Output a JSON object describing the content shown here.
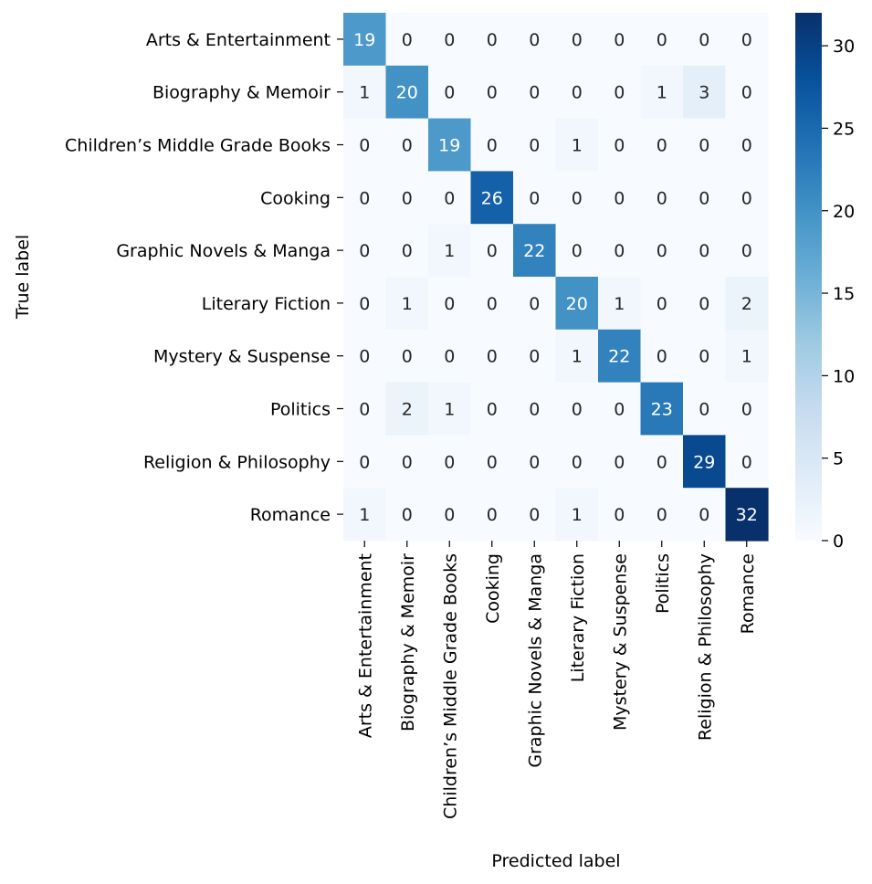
{
  "chart_data": {
    "type": "heatmap",
    "title": "",
    "xlabel": "Predicted label",
    "ylabel": "True label",
    "labels": [
      "Arts & Entertainment",
      "Biography & Memoir",
      "Children’s Middle Grade Books",
      "Cooking",
      "Graphic Novels & Manga",
      "Literary Fiction",
      "Mystery & Suspense",
      "Politics",
      "Religion & Philosophy",
      "Romance"
    ],
    "matrix": [
      [
        19,
        0,
        0,
        0,
        0,
        0,
        0,
        0,
        0,
        0
      ],
      [
        1,
        20,
        0,
        0,
        0,
        0,
        0,
        1,
        3,
        0
      ],
      [
        0,
        0,
        19,
        0,
        0,
        1,
        0,
        0,
        0,
        0
      ],
      [
        0,
        0,
        0,
        26,
        0,
        0,
        0,
        0,
        0,
        0
      ],
      [
        0,
        0,
        1,
        0,
        22,
        0,
        0,
        0,
        0,
        0
      ],
      [
        0,
        1,
        0,
        0,
        0,
        20,
        1,
        0,
        0,
        2
      ],
      [
        0,
        0,
        0,
        0,
        0,
        1,
        22,
        0,
        0,
        1
      ],
      [
        0,
        2,
        1,
        0,
        0,
        0,
        0,
        23,
        0,
        0
      ],
      [
        0,
        0,
        0,
        0,
        0,
        0,
        0,
        0,
        29,
        0
      ],
      [
        1,
        0,
        0,
        0,
        0,
        1,
        0,
        0,
        0,
        32
      ]
    ],
    "colorbar": {
      "range": [
        0,
        32
      ],
      "ticks": [
        0,
        5,
        10,
        15,
        20,
        25,
        30
      ],
      "colormap": "Blues"
    }
  }
}
